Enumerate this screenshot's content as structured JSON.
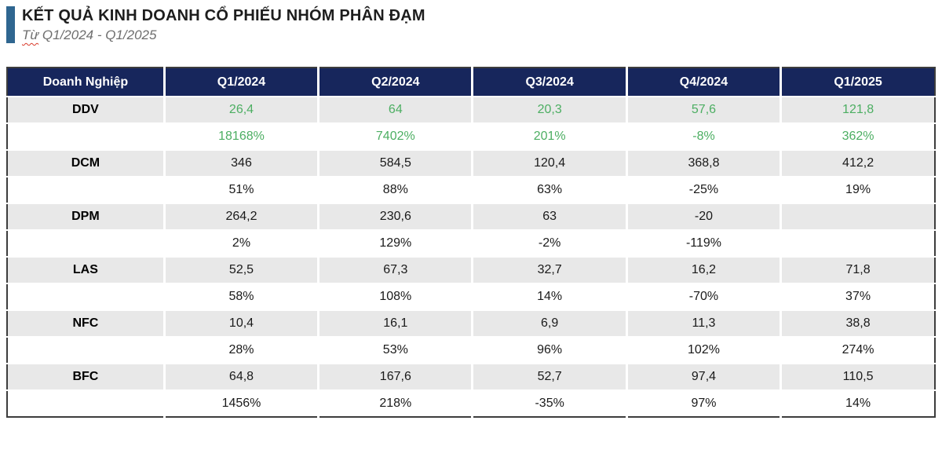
{
  "colors": {
    "accent_bar": "#2F6690",
    "table_header_bg": "#17265C",
    "row_stripe_gray": "#E8E8E8",
    "highlight_green": "#4CAE62",
    "outer_border": "#3D3D3D",
    "subtitle_gray": "#6E6E6E",
    "squiggle_red": "#D93A2B"
  },
  "chart_data": {
    "type": "table",
    "title": "KẾT QUẢ KINH DOANH CỔ PHIẾU NHÓM PHÂN ĐẠM",
    "subtitle_prefix": "Từ",
    "subtitle_rest": " Q1/2024 - Q1/2025",
    "columns": [
      "Doanh Nghiệp",
      "Q1/2024",
      "Q2/2024",
      "Q3/2024",
      "Q4/2024",
      "Q1/2025"
    ],
    "row_pattern": [
      "quarterly value",
      "growth percent"
    ],
    "companies": [
      {
        "name": "DDV",
        "highlight": "green",
        "values": [
          "26,4",
          "64",
          "20,3",
          "57,6",
          "121,8"
        ],
        "growth": [
          "18168%",
          "7402%",
          "201%",
          "-8%",
          "362%"
        ]
      },
      {
        "name": "DCM",
        "highlight": "none",
        "values": [
          "346",
          "584,5",
          "120,4",
          "368,8",
          "412,2"
        ],
        "growth": [
          "51%",
          "88%",
          "63%",
          "-25%",
          "19%"
        ]
      },
      {
        "name": "DPM",
        "highlight": "none",
        "values": [
          "264,2",
          "230,6",
          "63",
          "-20",
          ""
        ],
        "growth": [
          "2%",
          "129%",
          "-2%",
          "-119%",
          ""
        ]
      },
      {
        "name": "LAS",
        "highlight": "none",
        "values": [
          "52,5",
          "67,3",
          "32,7",
          "16,2",
          "71,8"
        ],
        "growth": [
          "58%",
          "108%",
          "14%",
          "-70%",
          "37%"
        ]
      },
      {
        "name": "NFC",
        "highlight": "none",
        "values": [
          "10,4",
          "16,1",
          "6,9",
          "11,3",
          "38,8"
        ],
        "growth": [
          "28%",
          "53%",
          "96%",
          "102%",
          "274%"
        ]
      },
      {
        "name": "BFC",
        "highlight": "none",
        "values": [
          "64,8",
          "167,6",
          "52,7",
          "97,4",
          "110,5"
        ],
        "growth": [
          "1456%",
          "218%",
          "-35%",
          "97%",
          "14%"
        ]
      }
    ]
  }
}
